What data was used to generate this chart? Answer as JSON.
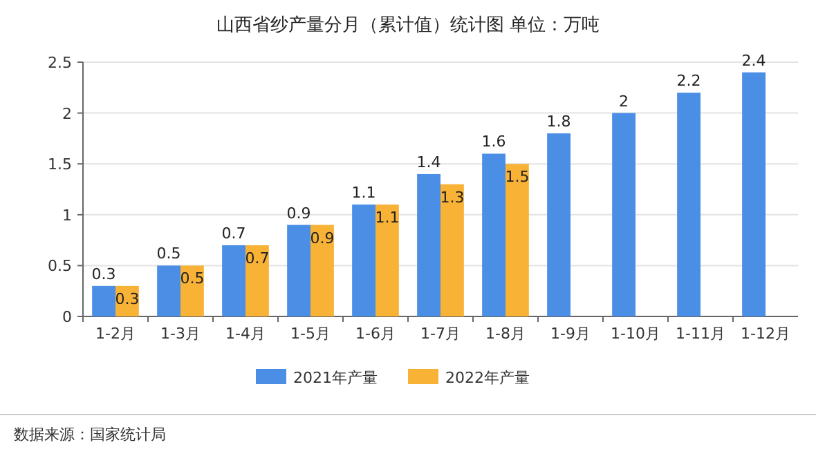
{
  "chart_data": {
    "type": "bar",
    "title": "山西省纱产量分月（累计值）统计图 单位：万吨",
    "categories": [
      "1-2月",
      "1-3月",
      "1-4月",
      "1-5月",
      "1-6月",
      "1-7月",
      "1-8月",
      "1-9月",
      "1-10月",
      "1-11月",
      "1-12月"
    ],
    "series": [
      {
        "name": "2021年产量",
        "color": "#4a8ee6",
        "values": [
          0.3,
          0.5,
          0.7,
          0.9,
          1.1,
          1.4,
          1.6,
          1.8,
          2,
          2.2,
          2.4
        ]
      },
      {
        "name": "2022年产量",
        "color": "#f8b236",
        "values": [
          0.3,
          0.5,
          0.7,
          0.9,
          1.1,
          1.3,
          1.5,
          null,
          null,
          null,
          null
        ]
      }
    ],
    "ylim": [
      0,
      2.5
    ],
    "yticks": [
      0,
      0.5,
      1,
      1.5,
      2,
      2.5
    ],
    "grid": "y",
    "legend": "bottom",
    "data_labels": true,
    "annotations": [
      "数据来源：国家统计局"
    ]
  }
}
